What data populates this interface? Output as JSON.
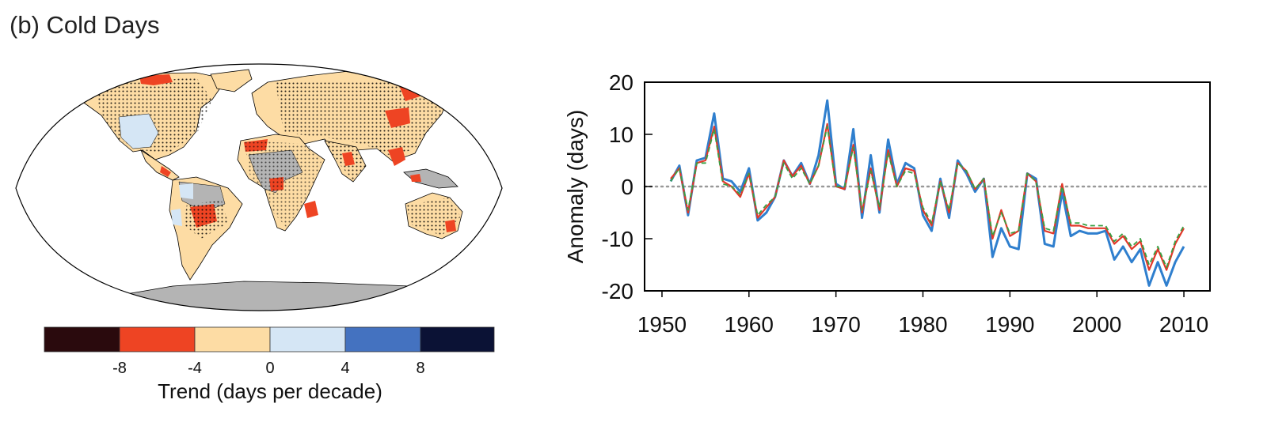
{
  "panel_title": "(b) Cold Days",
  "colors": {
    "trend_le_-8": "#2a0a0d",
    "trend_-8_-4": "#ee4423",
    "trend_-4_0": "#fddca4",
    "trend_0_4": "#d5e6f5",
    "trend_4_8": "#4472c0",
    "trend_ge_8": "#0b1235",
    "no_data": "#b4b4b4",
    "series_blue": "#2f7fce",
    "series_red": "#e2382a",
    "series_green": "#3aa043"
  },
  "map": {
    "colorbar": {
      "ticks": [
        "-8",
        "-4",
        "0",
        "4",
        "8"
      ],
      "label": "Trend (days per decade)"
    }
  },
  "chart_data": {
    "type": "line",
    "title": "",
    "xlabel": "",
    "ylabel": "Anomaly (days)",
    "xlim": [
      1948,
      2013
    ],
    "ylim": [
      -20,
      20
    ],
    "xticks": [
      1950,
      1960,
      1970,
      1980,
      1990,
      2000,
      2010
    ],
    "yticks": [
      20,
      10,
      0,
      -10,
      -20
    ],
    "grid": false,
    "reference_line": {
      "y": 0,
      "style": "dotted"
    },
    "x": [
      1951,
      1952,
      1953,
      1954,
      1955,
      1956,
      1957,
      1958,
      1959,
      1960,
      1961,
      1962,
      1963,
      1964,
      1965,
      1966,
      1967,
      1968,
      1969,
      1970,
      1971,
      1972,
      1973,
      1974,
      1975,
      1976,
      1977,
      1978,
      1979,
      1980,
      1981,
      1982,
      1983,
      1984,
      1985,
      1986,
      1987,
      1988,
      1989,
      1990,
      1991,
      1992,
      1993,
      1994,
      1995,
      1996,
      1997,
      1998,
      1999,
      2000,
      2001,
      2002,
      2003,
      2004,
      2005,
      2006,
      2007,
      2008,
      2009,
      2010
    ],
    "series": [
      {
        "color": "blue",
        "values": [
          1,
          4,
          -5.5,
          5,
          5.5,
          14,
          1.5,
          1,
          -1,
          3.5,
          -6.5,
          -5,
          -2,
          5,
          2,
          4.5,
          0.5,
          6,
          16.5,
          0.5,
          -0.5,
          11,
          -6,
          6,
          -5,
          9,
          0.5,
          4.5,
          3.5,
          -5.5,
          -8.5,
          1.5,
          -6,
          5,
          2.5,
          -1,
          1.5,
          -13.5,
          -8,
          -11.5,
          -12,
          2.5,
          1.5,
          -11,
          -11.5,
          -1,
          -9.5,
          -8.5,
          -9,
          -9,
          -8.5,
          -14,
          -11.5,
          -14.5,
          -12,
          -19,
          -14.5,
          -19,
          -14.5,
          -11.5
        ]
      },
      {
        "color": "red",
        "values": [
          1.5,
          3.5,
          -5,
          4.5,
          5,
          11.5,
          1,
          0,
          -2,
          2.5,
          -6,
          -4,
          -2,
          5,
          2,
          4,
          0.5,
          4,
          12,
          0,
          -0.5,
          8,
          -5,
          3.5,
          -4.5,
          7,
          0,
          3.5,
          3,
          -4.5,
          -7.5,
          1,
          -5,
          4.5,
          3,
          -0.5,
          1.5,
          -10,
          -4.5,
          -9.5,
          -8.5,
          2.5,
          1,
          -8.5,
          -9,
          0.5,
          -7.5,
          -7.5,
          -8,
          -8,
          -8,
          -11,
          -9.5,
          -12,
          -10.5,
          -16,
          -12,
          -16,
          -11,
          -8
        ]
      },
      {
        "color": "green",
        "values": [
          1,
          3.5,
          -4.5,
          4.5,
          4.5,
          11,
          0.5,
          0,
          -1.5,
          2.5,
          -5.5,
          -3.5,
          -2,
          4.5,
          1.5,
          3.5,
          0.5,
          4,
          11.5,
          0,
          0,
          7.5,
          -4.5,
          3,
          -4,
          6.5,
          0,
          3,
          2.5,
          -4,
          -7,
          1,
          -4.5,
          4.5,
          3,
          -0.5,
          1.5,
          -9.5,
          -5,
          -9,
          -8.5,
          2.5,
          1,
          -8,
          -8.5,
          0,
          -7,
          -7,
          -7.5,
          -7.5,
          -7.5,
          -10.5,
          -9,
          -11.5,
          -10,
          -15,
          -11.5,
          -15.5,
          -10.5,
          -7.5
        ]
      }
    ]
  }
}
